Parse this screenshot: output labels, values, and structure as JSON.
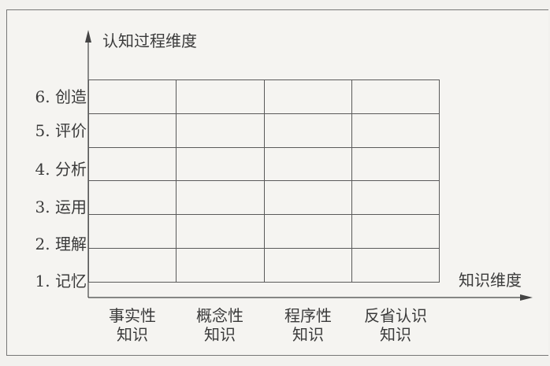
{
  "y_axis_title": "认知过程维度",
  "x_axis_title": "知识维度",
  "rows": [
    "6. 创造",
    "5. 评价",
    "4. 分析",
    "3. 运用",
    "2. 理解",
    "1. 记忆"
  ],
  "columns": [
    {
      "line1": "事实性",
      "line2": "知识"
    },
    {
      "line1": "概念性",
      "line2": "知识"
    },
    {
      "line1": "程序性",
      "line2": "知识"
    },
    {
      "line1": "反省认识",
      "line2": "知识"
    }
  ]
}
